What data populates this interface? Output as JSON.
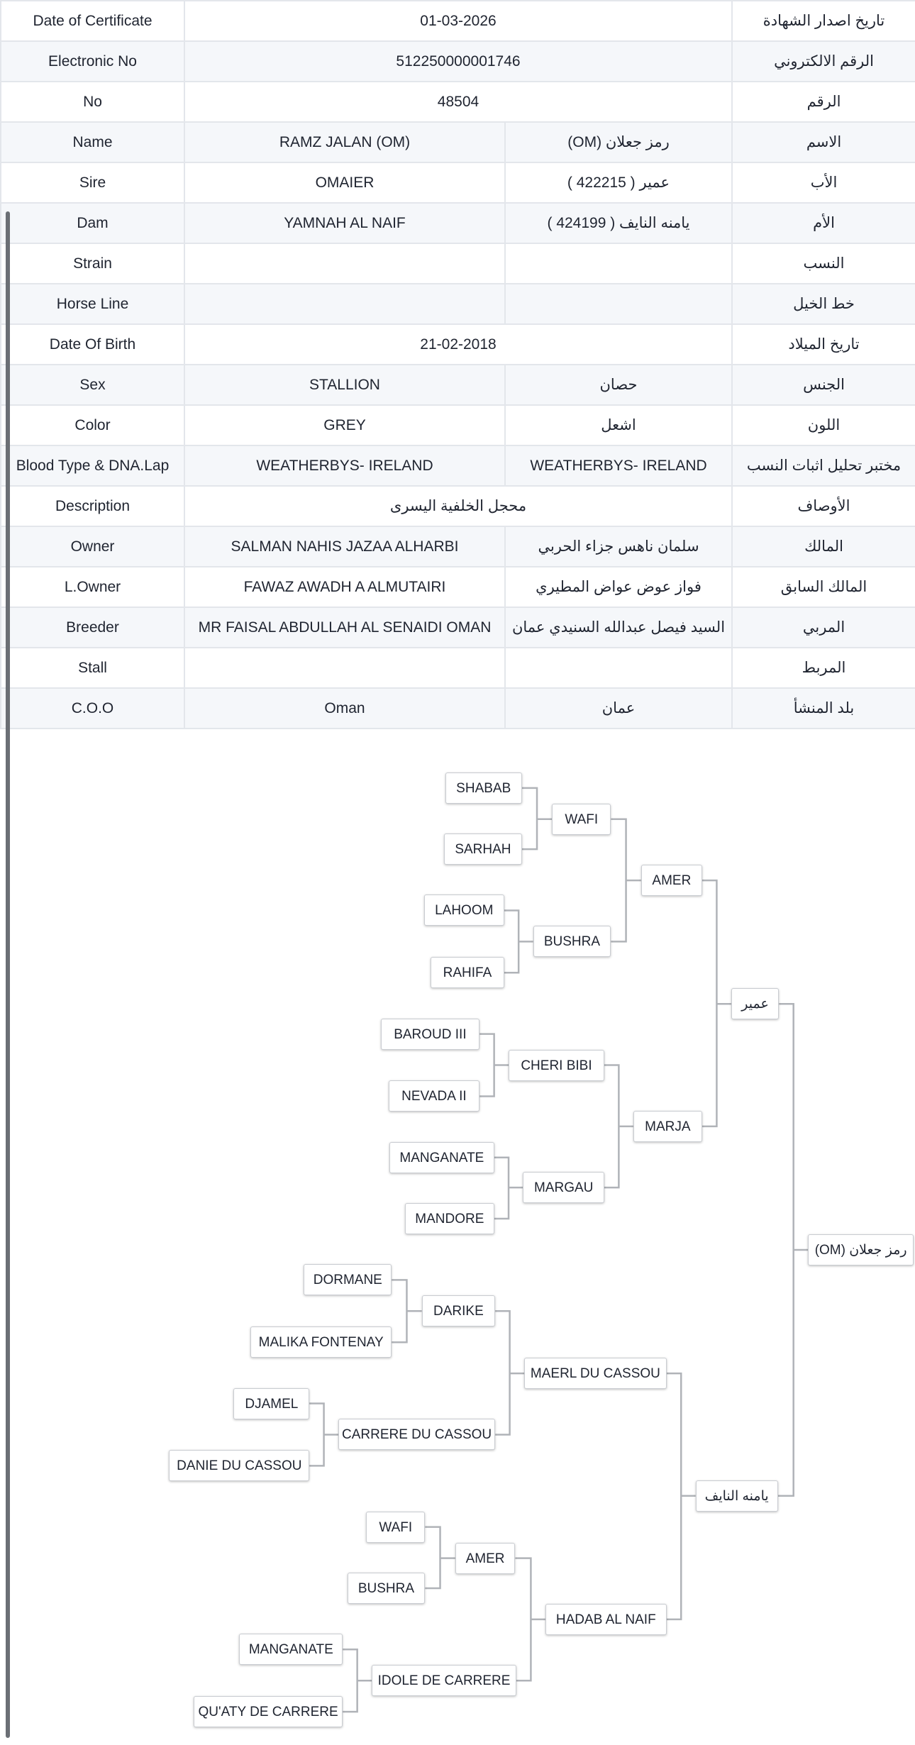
{
  "details": [
    {
      "label_en": "Date of Certificate",
      "value": "01-03-2026",
      "label_ar": "تاريخ اصدار الشهادة"
    },
    {
      "label_en": "Electronic No",
      "value": "512250000001746",
      "label_ar": "الرقم الالكتروني"
    },
    {
      "label_en": "No",
      "value": "48504",
      "label_ar": "الرقم"
    },
    {
      "label_en": "Name",
      "value_en": "RAMZ JALAN (OM)",
      "value_ar": "رمز جعلان (OM)",
      "label_ar": "الاسم"
    },
    {
      "label_en": "Sire",
      "value_en": "OMAIER",
      "value_ar": "عمير ( 422215 )",
      "label_ar": "الأب"
    },
    {
      "label_en": "Dam",
      "value_en": "YAMNAH AL NAIF",
      "value_ar": "يامنه النايف ( 424199 )",
      "label_ar": "الأم"
    },
    {
      "label_en": "Strain",
      "value_en": "",
      "value_ar": "",
      "label_ar": "النسب"
    },
    {
      "label_en": "Horse Line",
      "value_en": "",
      "value_ar": "",
      "label_ar": "خط الخيل"
    },
    {
      "label_en": "Date Of Birth",
      "value": "21-02-2018",
      "label_ar": "تاريخ الميلاد"
    },
    {
      "label_en": "Sex",
      "value_en": "STALLION",
      "value_ar": "حصان",
      "label_ar": "الجنس"
    },
    {
      "label_en": "Color",
      "value_en": "GREY",
      "value_ar": "اشعل",
      "label_ar": "اللون"
    },
    {
      "label_en": "Blood Type & DNA.Lap",
      "value_en": "WEATHERBYS- IRELAND",
      "value_ar": "WEATHERBYS- IRELAND",
      "label_ar": "مختبر تحليل اثبات النسب"
    },
    {
      "label_en": "Description",
      "value": "محجل الخلفية اليسرى",
      "label_ar": "الأوصاف"
    },
    {
      "label_en": "Owner",
      "value_en": "SALMAN NAHIS JAZAA ALHARBI",
      "value_ar": "سلمان ناهس جزاء الحربي",
      "label_ar": "المالك"
    },
    {
      "label_en": "L.Owner",
      "value_en": "FAWAZ AWADH A ALMUTAIRI",
      "value_ar": "فواز عوض عواض المطيري",
      "label_ar": "المالك السابق"
    },
    {
      "label_en": "Breeder",
      "value_en": "MR FAISAL ABDULLAH AL SENAIDI OMAN",
      "value_ar": "السيد فيصل عبدالله السنيدي عمان",
      "label_ar": "المربي"
    },
    {
      "label_en": "Stall",
      "value_en": "",
      "value_ar": "",
      "label_ar": "المربط"
    },
    {
      "label_en": "C.O.O",
      "value_en": "Oman",
      "value_ar": "عمان",
      "label_ar": "بلد المنشأ"
    }
  ],
  "pedigree": {
    "gen1": [
      "رمز جعلان (OM)"
    ],
    "gen2": [
      "عمير",
      "يامنه النايف"
    ],
    "gen3": [
      "AMER",
      "MARJA",
      "MAERL DU CASSOU",
      "HADAB AL NAIF"
    ],
    "gen4": [
      "WAFI",
      "BUSHRA",
      "CHERI BIBI",
      "MARGAU",
      "DARIKE",
      "CARRERE DU CASSOU",
      "AMER",
      "IDOLE DE CARRERE"
    ],
    "gen5": [
      "SHABAB",
      "SARHAH",
      "LAHOOM",
      "RAHIFA",
      "BAROUD III",
      "NEVADA II",
      "MANGANATE",
      "MANDORE",
      "DORMANE",
      "MALIKA FONTENAY",
      "DJAMEL",
      "DANIE DU CASSOU",
      "WAFI",
      "BUSHRA",
      "MANGANATE",
      "QU'ATY DE CARRERE"
    ]
  },
  "colors": {
    "row_alt": "#f5f7fa",
    "border": "#e3e6eb",
    "connector": "#b0b3b8"
  }
}
